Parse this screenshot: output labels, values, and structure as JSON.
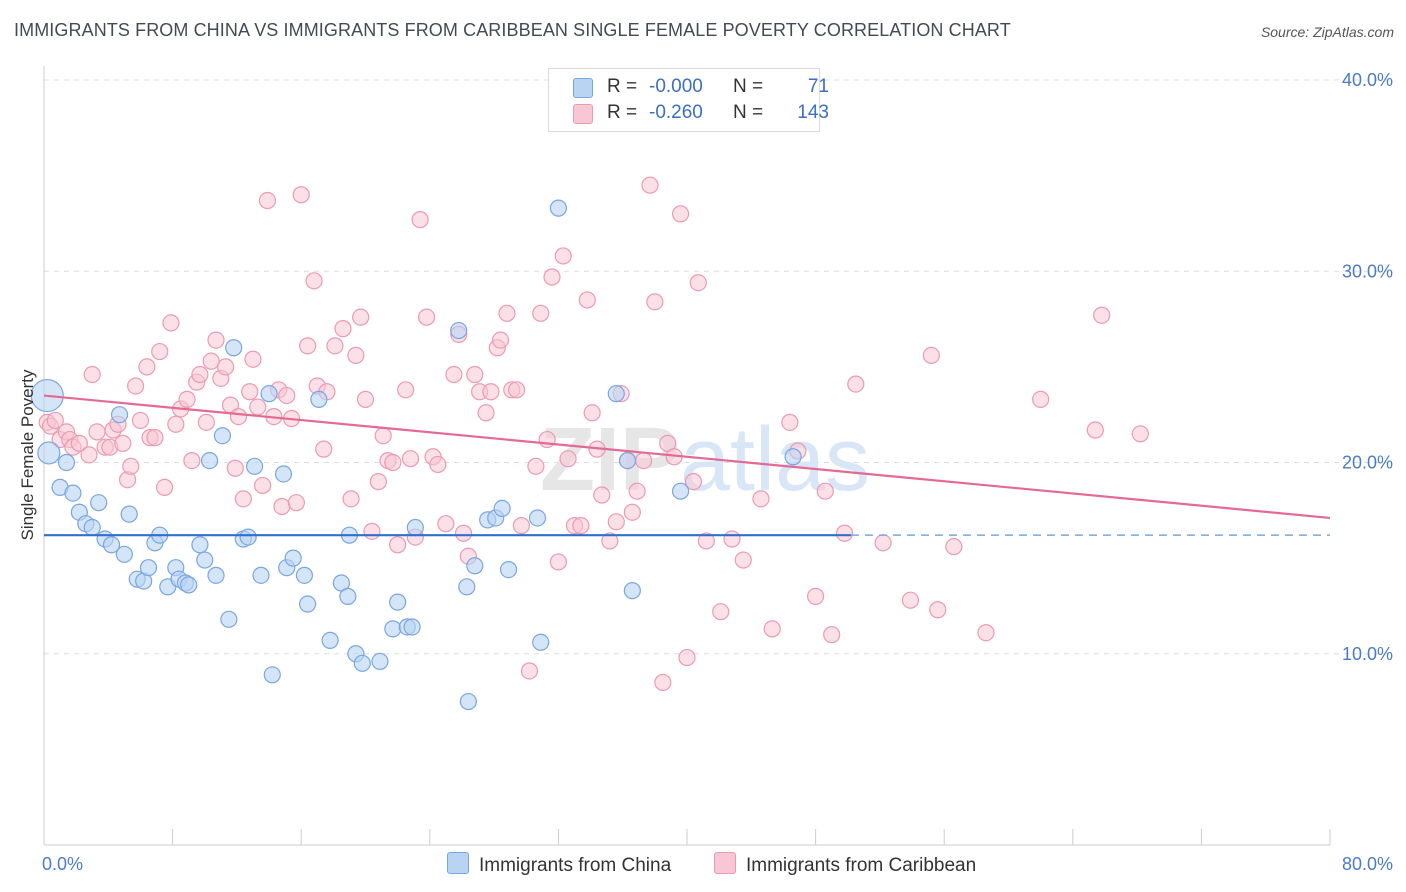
{
  "title": "IMMIGRANTS FROM CHINA VS IMMIGRANTS FROM CARIBBEAN SINGLE FEMALE POVERTY CORRELATION CHART",
  "source": "Source: ZipAtlas.com",
  "colors": {
    "china_fill": "#b9d3f3",
    "china_stroke": "#7aa6e0",
    "china_line": "#2f6fcf",
    "carib_fill": "#f8c6d4",
    "carib_stroke": "#ec9ab3",
    "carib_line": "#e46a93",
    "tick_text": "#4a7cc7",
    "grid": "#dddddd"
  },
  "legend": {
    "china": {
      "r_label": "R =",
      "r_value": "-0.000",
      "n_label": "N =",
      "n_value": "71"
    },
    "caribbean": {
      "r_label": "R =",
      "r_value": "-0.260",
      "n_label": "N =",
      "n_value": "143"
    }
  },
  "bottom_legend": {
    "china": "Immigrants from China",
    "caribbean": "Immigrants from Caribbean"
  },
  "chart_data": {
    "type": "scatter",
    "xlabel": "",
    "ylabel": "Single Female Poverty",
    "xlim": [
      0,
      80
    ],
    "ylim": [
      0,
      40
    ],
    "x_tick_labels": [
      "0.0%",
      "80.0%"
    ],
    "y_ticks": [
      10,
      20,
      30,
      40
    ],
    "y_tick_labels": [
      "10.0%",
      "20.0%",
      "30.0%",
      "40.0%"
    ],
    "grid": true,
    "watermark": "ZIPatlas",
    "series": [
      {
        "name": "Immigrants from China",
        "trend": {
          "x": [
            0,
            50.2
          ],
          "y": [
            16.2,
            16.2
          ],
          "dashed_to": 80
        },
        "points": [
          [
            0.2,
            23.5
          ],
          [
            0.3,
            20.5
          ],
          [
            1.0,
            18.7
          ],
          [
            1.4,
            20.0
          ],
          [
            1.8,
            18.4
          ],
          [
            2.2,
            17.4
          ],
          [
            2.6,
            16.8
          ],
          [
            3.0,
            16.6
          ],
          [
            3.4,
            17.9
          ],
          [
            3.8,
            16.0
          ],
          [
            4.2,
            15.7
          ],
          [
            4.7,
            22.5
          ],
          [
            5.0,
            15.2
          ],
          [
            5.3,
            17.3
          ],
          [
            5.8,
            13.9
          ],
          [
            6.2,
            13.8
          ],
          [
            6.5,
            14.5
          ],
          [
            6.9,
            15.8
          ],
          [
            7.2,
            16.2
          ],
          [
            7.7,
            13.5
          ],
          [
            8.2,
            14.5
          ],
          [
            8.4,
            13.9
          ],
          [
            8.8,
            13.7
          ],
          [
            9.0,
            13.6
          ],
          [
            9.7,
            15.7
          ],
          [
            10.0,
            14.9
          ],
          [
            10.3,
            20.1
          ],
          [
            10.7,
            14.1
          ],
          [
            11.1,
            21.4
          ],
          [
            11.5,
            11.8
          ],
          [
            11.8,
            26.0
          ],
          [
            12.4,
            16.0
          ],
          [
            12.7,
            16.1
          ],
          [
            13.1,
            19.8
          ],
          [
            13.5,
            14.1
          ],
          [
            14.0,
            23.6
          ],
          [
            14.2,
            8.9
          ],
          [
            14.9,
            19.4
          ],
          [
            15.1,
            14.5
          ],
          [
            15.5,
            15.0
          ],
          [
            16.2,
            14.1
          ],
          [
            16.4,
            12.6
          ],
          [
            17.1,
            23.3
          ],
          [
            17.8,
            10.7
          ],
          [
            18.5,
            13.7
          ],
          [
            18.9,
            13.0
          ],
          [
            19.0,
            16.2
          ],
          [
            19.4,
            10.0
          ],
          [
            19.8,
            9.5
          ],
          [
            20.9,
            9.6
          ],
          [
            21.7,
            11.3
          ],
          [
            22.0,
            12.7
          ],
          [
            22.6,
            11.4
          ],
          [
            22.9,
            11.4
          ],
          [
            23.1,
            16.6
          ],
          [
            25.8,
            26.9
          ],
          [
            26.3,
            13.5
          ],
          [
            26.4,
            7.5
          ],
          [
            26.8,
            14.6
          ],
          [
            27.6,
            17.0
          ],
          [
            28.1,
            17.1
          ],
          [
            28.5,
            17.6
          ],
          [
            28.9,
            14.4
          ],
          [
            30.7,
            17.1
          ],
          [
            30.9,
            10.6
          ],
          [
            32.0,
            33.3
          ],
          [
            35.6,
            23.6
          ],
          [
            36.3,
            20.1
          ],
          [
            36.6,
            13.3
          ],
          [
            39.6,
            18.5
          ],
          [
            46.6,
            20.3
          ]
        ]
      },
      {
        "name": "Immigrants from Caribbean",
        "trend": {
          "x": [
            0,
            80
          ],
          "y": [
            23.5,
            17.1
          ]
        },
        "points": [
          [
            0.2,
            22.1
          ],
          [
            0.4,
            21.9
          ],
          [
            0.7,
            22.2
          ],
          [
            1.0,
            21.2
          ],
          [
            1.4,
            21.6
          ],
          [
            1.6,
            21.2
          ],
          [
            1.8,
            20.8
          ],
          [
            2.2,
            21.0
          ],
          [
            2.8,
            20.4
          ],
          [
            3.0,
            24.6
          ],
          [
            3.3,
            21.6
          ],
          [
            3.8,
            20.8
          ],
          [
            4.1,
            20.8
          ],
          [
            4.3,
            21.7
          ],
          [
            4.6,
            22.0
          ],
          [
            4.9,
            21.0
          ],
          [
            5.2,
            19.1
          ],
          [
            5.4,
            19.8
          ],
          [
            5.7,
            24.0
          ],
          [
            6.0,
            22.2
          ],
          [
            6.4,
            25.0
          ],
          [
            6.6,
            21.3
          ],
          [
            6.9,
            21.3
          ],
          [
            7.2,
            25.8
          ],
          [
            7.5,
            18.7
          ],
          [
            7.9,
            27.3
          ],
          [
            8.2,
            22.0
          ],
          [
            8.5,
            22.8
          ],
          [
            8.9,
            23.3
          ],
          [
            9.2,
            20.1
          ],
          [
            9.5,
            24.2
          ],
          [
            9.7,
            24.6
          ],
          [
            10.1,
            22.1
          ],
          [
            10.4,
            25.3
          ],
          [
            10.7,
            26.4
          ],
          [
            11.0,
            24.4
          ],
          [
            11.3,
            25.0
          ],
          [
            11.6,
            23.0
          ],
          [
            11.9,
            19.7
          ],
          [
            12.1,
            22.4
          ],
          [
            12.4,
            18.1
          ],
          [
            12.8,
            23.7
          ],
          [
            13.0,
            25.4
          ],
          [
            13.3,
            22.9
          ],
          [
            13.6,
            18.8
          ],
          [
            13.9,
            33.7
          ],
          [
            14.3,
            22.4
          ],
          [
            14.6,
            23.8
          ],
          [
            14.8,
            17.7
          ],
          [
            15.1,
            23.5
          ],
          [
            15.4,
            22.3
          ],
          [
            15.7,
            17.9
          ],
          [
            16.0,
            34.0
          ],
          [
            16.4,
            26.1
          ],
          [
            16.8,
            29.5
          ],
          [
            17.0,
            24.0
          ],
          [
            17.4,
            20.7
          ],
          [
            17.6,
            23.7
          ],
          [
            18.1,
            26.1
          ],
          [
            18.6,
            27.0
          ],
          [
            19.1,
            18.1
          ],
          [
            19.4,
            25.6
          ],
          [
            19.7,
            27.6
          ],
          [
            20.0,
            23.3
          ],
          [
            20.4,
            16.4
          ],
          [
            20.8,
            19.0
          ],
          [
            21.1,
            21.4
          ],
          [
            21.4,
            20.1
          ],
          [
            21.7,
            20.0
          ],
          [
            22.0,
            15.7
          ],
          [
            22.5,
            23.8
          ],
          [
            22.8,
            20.2
          ],
          [
            23.1,
            16.1
          ],
          [
            23.4,
            32.7
          ],
          [
            23.8,
            27.6
          ],
          [
            24.2,
            20.3
          ],
          [
            24.5,
            19.9
          ],
          [
            25.0,
            16.8
          ],
          [
            25.5,
            24.6
          ],
          [
            25.8,
            26.7
          ],
          [
            26.1,
            16.3
          ],
          [
            26.4,
            15.1
          ],
          [
            26.8,
            24.6
          ],
          [
            27.1,
            23.7
          ],
          [
            27.5,
            22.6
          ],
          [
            27.8,
            23.7
          ],
          [
            28.2,
            26.0
          ],
          [
            28.4,
            26.4
          ],
          [
            28.8,
            27.8
          ],
          [
            29.1,
            23.8
          ],
          [
            29.4,
            23.8
          ],
          [
            29.7,
            16.7
          ],
          [
            30.2,
            9.1
          ],
          [
            30.6,
            19.8
          ],
          [
            30.9,
            27.8
          ],
          [
            31.3,
            21.2
          ],
          [
            31.6,
            29.7
          ],
          [
            32.0,
            14.8
          ],
          [
            32.3,
            30.8
          ],
          [
            32.6,
            20.2
          ],
          [
            33.0,
            16.7
          ],
          [
            33.4,
            16.7
          ],
          [
            33.8,
            28.5
          ],
          [
            34.1,
            22.6
          ],
          [
            34.4,
            20.7
          ],
          [
            34.7,
            18.3
          ],
          [
            35.2,
            15.9
          ],
          [
            35.6,
            16.9
          ],
          [
            35.9,
            23.6
          ],
          [
            36.3,
            20.1
          ],
          [
            36.6,
            17.4
          ],
          [
            36.9,
            18.5
          ],
          [
            37.3,
            20.1
          ],
          [
            37.7,
            34.5
          ],
          [
            38.0,
            28.4
          ],
          [
            38.5,
            8.5
          ],
          [
            38.8,
            21.0
          ],
          [
            39.2,
            20.3
          ],
          [
            39.6,
            33.0
          ],
          [
            40.0,
            9.8
          ],
          [
            40.4,
            19.0
          ],
          [
            40.7,
            29.4
          ],
          [
            41.2,
            15.9
          ],
          [
            42.1,
            12.2
          ],
          [
            42.8,
            16.0
          ],
          [
            43.5,
            14.9
          ],
          [
            44.6,
            18.1
          ],
          [
            45.3,
            11.3
          ],
          [
            46.4,
            22.1
          ],
          [
            46.9,
            20.6
          ],
          [
            48.0,
            13.0
          ],
          [
            48.6,
            18.5
          ],
          [
            49.0,
            11.0
          ],
          [
            49.8,
            16.3
          ],
          [
            50.5,
            24.1
          ],
          [
            52.2,
            15.8
          ],
          [
            53.9,
            12.8
          ],
          [
            55.2,
            25.6
          ],
          [
            55.6,
            12.3
          ],
          [
            56.6,
            15.6
          ],
          [
            58.6,
            11.1
          ],
          [
            62.0,
            23.3
          ],
          [
            65.4,
            21.7
          ],
          [
            65.8,
            27.7
          ],
          [
            68.2,
            21.5
          ]
        ]
      }
    ]
  }
}
